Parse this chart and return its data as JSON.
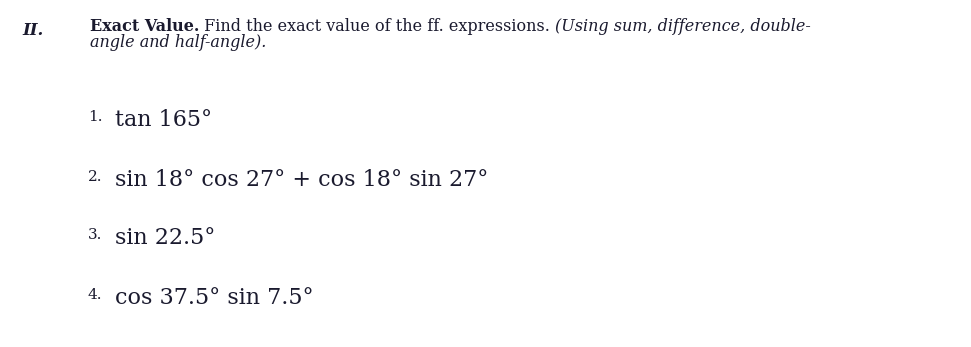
{
  "background_color": "#ffffff",
  "text_color": "#1a1a2e",
  "roman_numeral": "II.",
  "header_bold": "Exact Value.",
  "header_normal": " Find the exact value of the ff. expressions. ",
  "header_italic_line1": "(Using sum, difference, double-",
  "header_italic_line2": "angle and half-angle).",
  "items": [
    {
      "num": "1.",
      "expr": "tan 165°"
    },
    {
      "num": "2.",
      "expr": "sin 18° cos 27° + cos 18° sin 27°"
    },
    {
      "num": "3.",
      "expr": "sin 22.5°"
    },
    {
      "num": "4.",
      "expr": "cos 37.5° sin 7.5°"
    }
  ],
  "header_fontsize": 11.5,
  "item_fontsize": 16,
  "num_fontsize": 11,
  "roman_fontsize": 12,
  "fig_width": 9.71,
  "fig_height": 3.47,
  "dpi": 100
}
